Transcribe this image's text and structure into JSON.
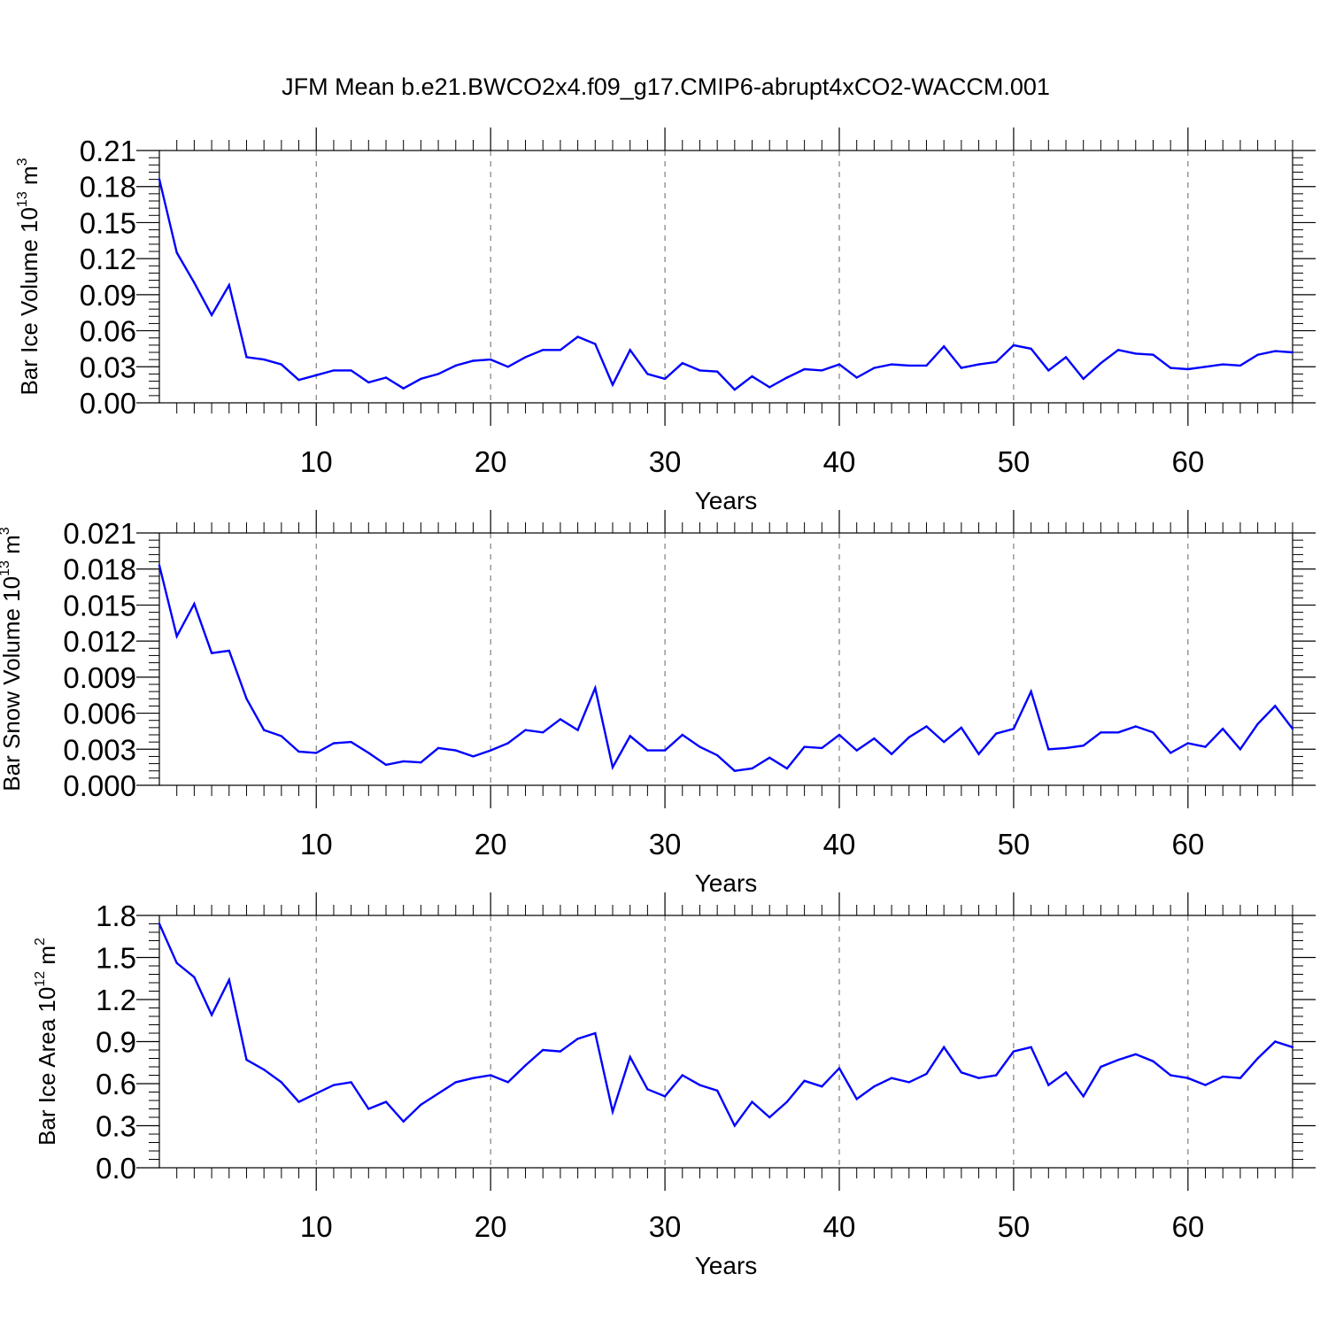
{
  "figure": {
    "title": "JFM Mean b.e21.BWCO2x4.f09_g17.CMIP6-abrupt4xCO2-WACCM.001"
  },
  "chart_data": [
    {
      "type": "line",
      "title": "",
      "xlabel": "Years",
      "ylabel": {
        "pre": "Bar Ice Volume 10",
        "exp": "13",
        "mid": " m",
        "unitExp": "3"
      },
      "xlim": [
        1,
        66
      ],
      "ylim": [
        0,
        0.21
      ],
      "xticks": [
        "10",
        "20",
        "30",
        "40",
        "50",
        "60"
      ],
      "yticks": [
        "0.00",
        "0.03",
        "0.06",
        "0.09",
        "0.12",
        "0.15",
        "0.18",
        "0.21"
      ],
      "grid": "vertical dashed at major x ticks",
      "series_color": "#0000ff",
      "x": [
        1,
        2,
        3,
        4,
        5,
        6,
        7,
        8,
        9,
        10,
        11,
        12,
        13,
        14,
        15,
        16,
        17,
        18,
        19,
        20,
        21,
        22,
        23,
        24,
        25,
        26,
        27,
        28,
        29,
        30,
        31,
        32,
        33,
        34,
        35,
        36,
        37,
        38,
        39,
        40,
        41,
        42,
        43,
        44,
        45,
        46,
        47,
        48,
        49,
        50,
        51,
        52,
        53,
        54,
        55,
        56,
        57,
        58,
        59,
        60,
        61,
        62,
        63,
        64,
        65,
        66
      ],
      "values": [
        0.186,
        0.125,
        0.1,
        0.073,
        0.098,
        0.038,
        0.036,
        0.032,
        0.019,
        0.023,
        0.027,
        0.027,
        0.017,
        0.021,
        0.012,
        0.02,
        0.024,
        0.031,
        0.035,
        0.036,
        0.03,
        0.038,
        0.044,
        0.044,
        0.055,
        0.049,
        0.015,
        0.044,
        0.024,
        0.02,
        0.033,
        0.027,
        0.026,
        0.011,
        0.022,
        0.013,
        0.021,
        0.028,
        0.027,
        0.032,
        0.021,
        0.029,
        0.032,
        0.031,
        0.031,
        0.047,
        0.029,
        0.032,
        0.034,
        0.048,
        0.045,
        0.027,
        0.038,
        0.02,
        0.033,
        0.044,
        0.041,
        0.04,
        0.029,
        0.028,
        0.03,
        0.032,
        0.031,
        0.04,
        0.043,
        0.042
      ]
    },
    {
      "type": "line",
      "title": "",
      "xlabel": "Years",
      "ylabel": {
        "pre": "Bar Snow Volume 10",
        "exp": "13",
        "mid": " m",
        "unitExp": "3"
      },
      "xlim": [
        1,
        66
      ],
      "ylim": [
        0,
        0.021
      ],
      "xticks": [
        "10",
        "20",
        "30",
        "40",
        "50",
        "60"
      ],
      "yticks": [
        "0.000",
        "0.003",
        "0.006",
        "0.009",
        "0.012",
        "0.015",
        "0.018",
        "0.021"
      ],
      "grid": "vertical dashed at major x ticks",
      "series_color": "#0000ff",
      "x": [
        1,
        2,
        3,
        4,
        5,
        6,
        7,
        8,
        9,
        10,
        11,
        12,
        13,
        14,
        15,
        16,
        17,
        18,
        19,
        20,
        21,
        22,
        23,
        24,
        25,
        26,
        27,
        28,
        29,
        30,
        31,
        32,
        33,
        34,
        35,
        36,
        37,
        38,
        39,
        40,
        41,
        42,
        43,
        44,
        45,
        46,
        47,
        48,
        49,
        50,
        51,
        52,
        53,
        54,
        55,
        56,
        57,
        58,
        59,
        60,
        61,
        62,
        63,
        64,
        65,
        66
      ],
      "values": [
        0.0183,
        0.0124,
        0.0151,
        0.011,
        0.0112,
        0.0072,
        0.0046,
        0.0041,
        0.0028,
        0.0027,
        0.0035,
        0.0036,
        0.0027,
        0.0017,
        0.002,
        0.0019,
        0.0031,
        0.0029,
        0.0024,
        0.0029,
        0.0035,
        0.0046,
        0.0044,
        0.0055,
        0.0046,
        0.0081,
        0.0015,
        0.0041,
        0.0029,
        0.0029,
        0.0042,
        0.0032,
        0.0025,
        0.0012,
        0.0014,
        0.0023,
        0.0014,
        0.0032,
        0.0031,
        0.0042,
        0.0029,
        0.0039,
        0.0026,
        0.004,
        0.0049,
        0.0036,
        0.0048,
        0.0026,
        0.0043,
        0.0047,
        0.0078,
        0.003,
        0.0031,
        0.0033,
        0.0044,
        0.0044,
        0.0049,
        0.0044,
        0.0027,
        0.0035,
        0.0032,
        0.0047,
        0.003,
        0.0051,
        0.0066,
        0.0047
      ]
    },
    {
      "type": "line",
      "title": "",
      "xlabel": "Years",
      "ylabel": {
        "pre": "Bar Ice Area 10",
        "exp": "12",
        "mid": " m",
        "unitExp": "2"
      },
      "xlim": [
        1,
        66
      ],
      "ylim": [
        0,
        1.8
      ],
      "xticks": [
        "10",
        "20",
        "30",
        "40",
        "50",
        "60"
      ],
      "yticks": [
        "0.0",
        "0.3",
        "0.6",
        "0.9",
        "1.2",
        "1.5",
        "1.8"
      ],
      "grid": "vertical dashed at major x ticks",
      "series_color": "#0000ff",
      "x": [
        1,
        2,
        3,
        4,
        5,
        6,
        7,
        8,
        9,
        10,
        11,
        12,
        13,
        14,
        15,
        16,
        17,
        18,
        19,
        20,
        21,
        22,
        23,
        24,
        25,
        26,
        27,
        28,
        29,
        30,
        31,
        32,
        33,
        34,
        35,
        36,
        37,
        38,
        39,
        40,
        41,
        42,
        43,
        44,
        45,
        46,
        47,
        48,
        49,
        50,
        51,
        52,
        53,
        54,
        55,
        56,
        57,
        58,
        59,
        60,
        61,
        62,
        63,
        64,
        65,
        66
      ],
      "values": [
        1.74,
        1.46,
        1.36,
        1.09,
        1.34,
        0.77,
        0.7,
        0.61,
        0.47,
        0.53,
        0.59,
        0.61,
        0.42,
        0.47,
        0.33,
        0.45,
        0.53,
        0.61,
        0.64,
        0.66,
        0.61,
        0.73,
        0.84,
        0.83,
        0.92,
        0.96,
        0.4,
        0.79,
        0.56,
        0.51,
        0.66,
        0.59,
        0.55,
        0.3,
        0.47,
        0.36,
        0.47,
        0.62,
        0.58,
        0.71,
        0.49,
        0.58,
        0.64,
        0.61,
        0.67,
        0.86,
        0.68,
        0.64,
        0.66,
        0.83,
        0.86,
        0.59,
        0.68,
        0.51,
        0.72,
        0.77,
        0.81,
        0.76,
        0.66,
        0.64,
        0.59,
        0.65,
        0.64,
        0.78,
        0.9,
        0.86
      ]
    }
  ]
}
